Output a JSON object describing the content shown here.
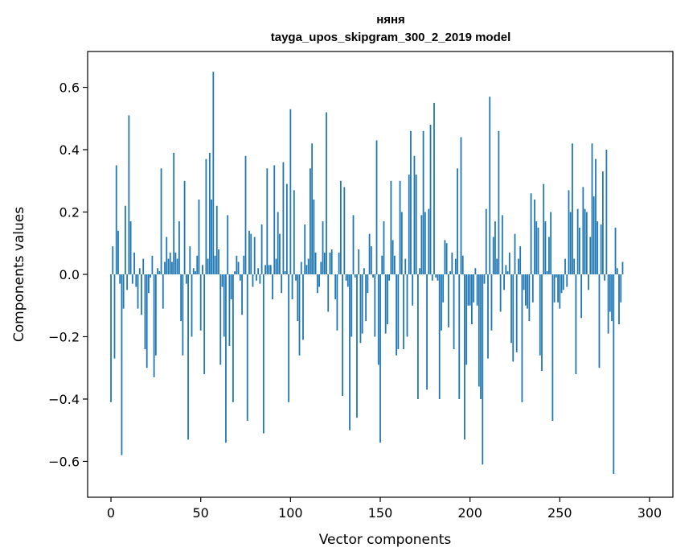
{
  "chart_data": {
    "type": "bar",
    "title": "няня",
    "subtitle": "tayga_upos_skipgram_300_2_2019 model",
    "xlabel": "Vector components",
    "ylabel": "Components values",
    "xlim": [
      -13,
      313
    ],
    "ylim": [
      -0.715,
      0.715
    ],
    "x_ticks": [
      0,
      50,
      100,
      150,
      200,
      250,
      300
    ],
    "y_ticks": [
      -0.6,
      -0.4,
      -0.2,
      0.0,
      0.2,
      0.4,
      0.6
    ],
    "y_tick_labels": [
      "−0.6",
      "−0.4",
      "−0.2",
      "0.0",
      "0.2",
      "0.4",
      "0.6"
    ],
    "x_tick_labels": [
      "0",
      "50",
      "100",
      "150",
      "200",
      "250",
      "300"
    ],
    "bar_color": "#1f77b4",
    "grid": false,
    "values": [
      -0.41,
      0.09,
      -0.27,
      0.35,
      0.14,
      -0.03,
      -0.58,
      -0.11,
      0.22,
      -0.05,
      0.51,
      0.17,
      -0.03,
      0.07,
      -0.04,
      -0.11,
      0.02,
      -0.13,
      0.05,
      -0.24,
      -0.3,
      -0.06,
      -0.01,
      0.06,
      -0.33,
      -0.26,
      0.02,
      0.01,
      0.34,
      -0.11,
      0.04,
      0.12,
      0.05,
      0.07,
      0.04,
      0.39,
      0.07,
      0.05,
      0.17,
      -0.15,
      -0.26,
      0.3,
      -0.03,
      -0.53,
      0.09,
      -0.2,
      0.02,
      0.01,
      0.06,
      0.24,
      -0.18,
      0.03,
      -0.32,
      0.37,
      0.05,
      0.39,
      0.24,
      0.65,
      0.06,
      0.22,
      0.08,
      -0.29,
      -0.04,
      -0.2,
      -0.54,
      0.19,
      -0.23,
      -0.08,
      -0.41,
      0.01,
      0.06,
      0.04,
      -0.02,
      -0.13,
      0.06,
      0.38,
      -0.47,
      0.14,
      0.13,
      -0.04,
      0.12,
      -0.02,
      0.02,
      -0.03,
      0.16,
      -0.51,
      0.03,
      0.34,
      0.03,
      0.03,
      -0.08,
      0.35,
      0.05,
      0.2,
      0.13,
      -0.06,
      0.36,
      0.01,
      0.29,
      -0.41,
      0.53,
      -0.08,
      0.27,
      -0.02,
      -0.15,
      -0.26,
      0.04,
      -0.21,
      0.16,
      0.03,
      0.05,
      0.34,
      0.42,
      0.24,
      0.07,
      -0.06,
      -0.04,
      0.04,
      0.17,
      0.07,
      0.52,
      -0.12,
      0.07,
      0.08,
      0.0,
      -0.08,
      -0.18,
      0.07,
      0.3,
      -0.39,
      0.28,
      -0.02,
      -0.04,
      -0.5,
      -0.2,
      0.19,
      -0.01,
      -0.46,
      0.08,
      -0.22,
      -0.19,
      0.02,
      -0.15,
      -0.06,
      0.13,
      0.09,
      -0.01,
      -0.2,
      0.43,
      -0.29,
      -0.54,
      0.06,
      0.17,
      -0.19,
      -0.16,
      -0.02,
      0.3,
      0.11,
      0.06,
      -0.26,
      -0.24,
      0.3,
      0.2,
      -0.24,
      0.05,
      -0.2,
      0.32,
      0.46,
      -0.1,
      0.38,
      0.32,
      -0.4,
      0.02,
      0.19,
      0.46,
      0.2,
      -0.37,
      0.21,
      0.48,
      -0.02,
      0.55,
      -0.01,
      -0.02,
      -0.4,
      -0.18,
      -0.09,
      0.11,
      0.1,
      -0.17,
      0.01,
      0.07,
      -0.24,
      0.05,
      0.34,
      -0.4,
      0.44,
      0.06,
      -0.53,
      -0.29,
      -0.1,
      -0.1,
      -0.16,
      -0.09,
      0.02,
      -0.1,
      -0.36,
      -0.4,
      -0.61,
      -0.03,
      0.21,
      -0.27,
      0.57,
      -0.18,
      0.12,
      0.17,
      0.05,
      0.46,
      -0.12,
      0.19,
      -0.05,
      0.03,
      0.01,
      0.07,
      -0.22,
      -0.28,
      0.13,
      -0.25,
      0.05,
      0.09,
      -0.41,
      -0.05,
      -0.1,
      -0.11,
      -0.15,
      0.26,
      -0.09,
      0.24,
      0.17,
      0.15,
      -0.26,
      -0.31,
      0.29,
      0.17,
      0.01,
      0.12,
      0.2,
      -0.47,
      -0.09,
      -0.01,
      -0.09,
      -0.11,
      -0.06,
      -0.05,
      0.05,
      -0.04,
      0.27,
      0.2,
      0.42,
      0.05,
      -0.32,
      0.21,
      0.15,
      -0.14,
      0.28,
      0.21,
      0.2,
      -0.05,
      0.12,
      0.42,
      0.25,
      0.37,
      0.17,
      -0.3,
      0.16,
      0.33,
      -0.02,
      0.4,
      -0.19,
      -0.12,
      -0.15,
      -0.64,
      0.15,
      0.02,
      -0.16,
      -0.09,
      0.04
    ]
  }
}
